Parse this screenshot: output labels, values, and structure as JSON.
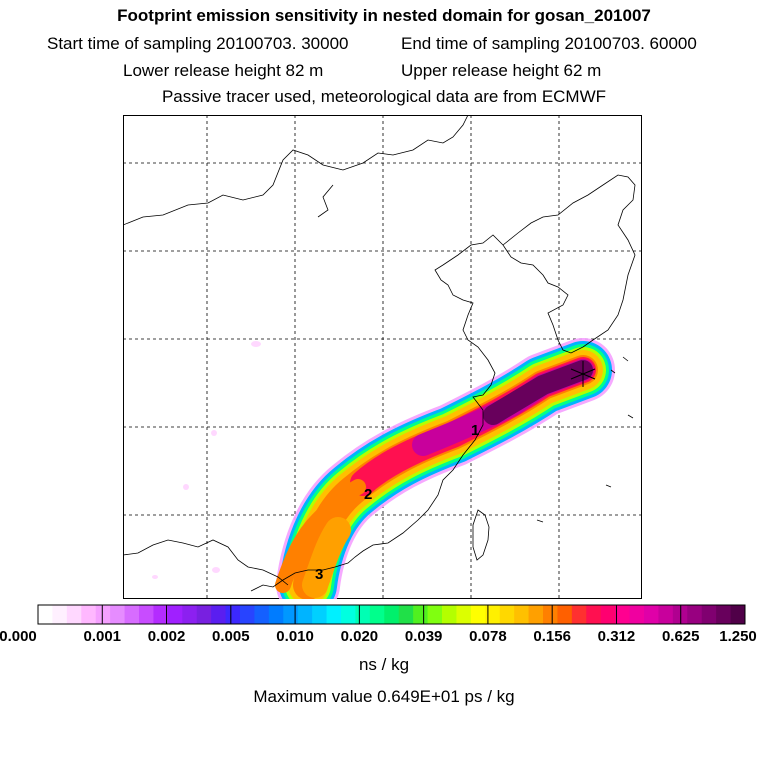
{
  "titles": {
    "line1": "Footprint emission sensitivity in nested domain for gosan_201007",
    "start_label": "Start time of sampling 20100703. 30000",
    "end_label": "End time of sampling 20100703. 60000",
    "lower_label": "Lower release height   82 m",
    "upper_label": "Upper release height   62 m",
    "line4": "Passive tracer used, meteorological data are from ECMWF"
  },
  "map": {
    "markers": [
      {
        "label": "1"
      },
      {
        "label": "2"
      },
      {
        "label": "3"
      }
    ]
  },
  "colorbar": {
    "ticks": [
      "0.000",
      "0.001",
      "0.002",
      "0.005",
      "0.010",
      "0.020",
      "0.039",
      "0.078",
      "0.156",
      "0.312",
      "0.625",
      "1.250"
    ],
    "colors": [
      "#ffffff",
      "#fff0ff",
      "#ffd8ff",
      "#ffb8ff",
      "#f5a0ff",
      "#e68cff",
      "#d76cff",
      "#c84cff",
      "#b42cff",
      "#a020ff",
      "#8c20f0",
      "#7820e0",
      "#5a1ef0",
      "#3c28ff",
      "#2844ff",
      "#1460ff",
      "#007cff",
      "#0098ff",
      "#00b4ff",
      "#00d0ff",
      "#00f0ff",
      "#00ffe0",
      "#00ffb4",
      "#00ff8c",
      "#00f06c",
      "#20e048",
      "#50f020",
      "#80ff10",
      "#b4ff00",
      "#dcff00",
      "#ffff00",
      "#fff000",
      "#ffd800",
      "#ffc000",
      "#ffa000",
      "#ff8000",
      "#ff6000",
      "#ff3030",
      "#ff1050",
      "#ff0070",
      "#ff0090",
      "#f000a0",
      "#e000a8",
      "#c8009c",
      "#b00090",
      "#980080",
      "#800070",
      "#68005c",
      "#500048"
    ],
    "units": "ns / kg"
  },
  "max_value": "Maximum value  0.649E+01 ps / kg"
}
